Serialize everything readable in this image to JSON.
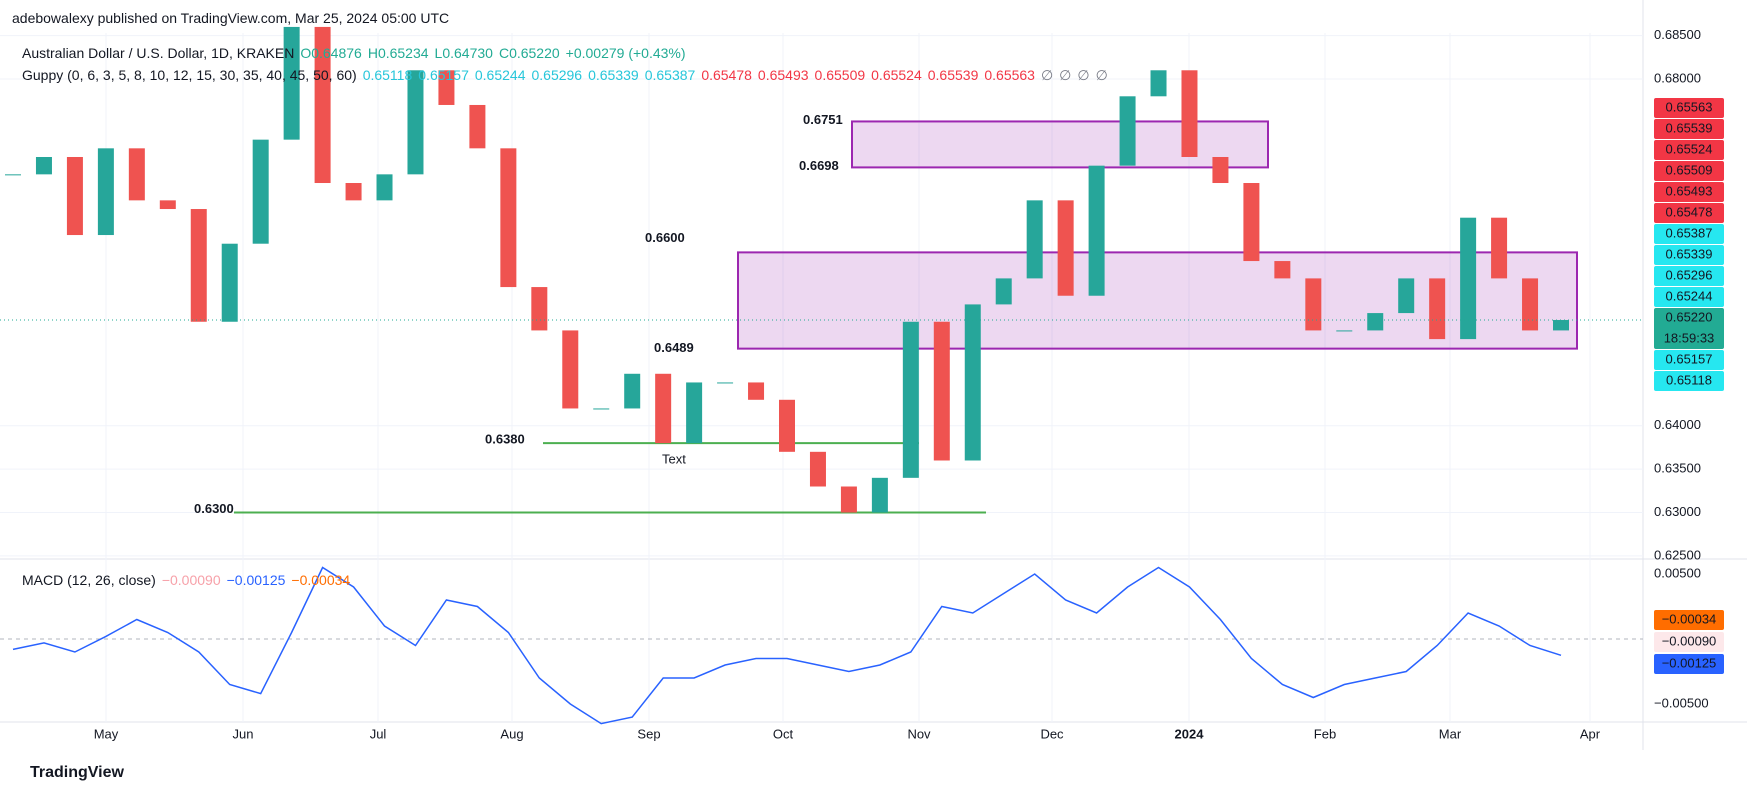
{
  "header": {
    "publisher": "adebowalexy published on TradingView.com, Mar 25, 2024 05:00 UTC"
  },
  "chart_data": {
    "type": "candlestick",
    "title": "Australian Dollar / U.S. Dollar, 1D, KRAKEN",
    "ohlc": [
      {
        "text": "O0.64876",
        "color": "#22ab94"
      },
      {
        "text": "H0.65234",
        "color": "#22ab94"
      },
      {
        "text": "L0.64730",
        "color": "#22ab94"
      },
      {
        "text": "C0.65220",
        "color": "#22ab94"
      },
      {
        "text": "+0.00279 (+0.43%)",
        "color": "#22ab94"
      }
    ],
    "guppy": {
      "label": "Guppy (0, 6, 3, 5, 8, 10, 12, 15, 30, 35, 40, 45, 50, 60)",
      "values": [
        {
          "text": "0.65118",
          "color": "#26c6da"
        },
        {
          "text": "0.65157",
          "color": "#26c6da"
        },
        {
          "text": "0.65244",
          "color": "#26c6da"
        },
        {
          "text": "0.65296",
          "color": "#26c6da"
        },
        {
          "text": "0.65339",
          "color": "#26c6da"
        },
        {
          "text": "0.65387",
          "color": "#26c6da"
        },
        {
          "text": "0.65478",
          "color": "#f23645"
        },
        {
          "text": "0.65493",
          "color": "#f23645"
        },
        {
          "text": "0.65509",
          "color": "#f23645"
        },
        {
          "text": "0.65524",
          "color": "#f23645"
        },
        {
          "text": "0.65539",
          "color": "#f23645"
        },
        {
          "text": "0.65563",
          "color": "#f23645"
        },
        {
          "text": "∅",
          "color": "#787b86"
        },
        {
          "text": "∅",
          "color": "#787b86"
        },
        {
          "text": "∅",
          "color": "#787b86"
        },
        {
          "text": "∅",
          "color": "#787b86"
        }
      ]
    },
    "close": [
      0.669,
      0.671,
      0.662,
      0.672,
      0.666,
      0.665,
      0.652,
      0.661,
      0.673,
      0.686,
      0.668,
      0.666,
      0.669,
      0.681,
      0.677,
      0.672,
      0.656,
      0.651,
      0.642,
      0.642,
      0.646,
      0.638,
      0.645,
      0.645,
      0.643,
      0.637,
      0.633,
      0.63,
      0.634,
      0.652,
      0.636,
      0.654,
      0.657,
      0.666,
      0.655,
      0.67,
      0.678,
      0.681,
      0.671,
      0.668,
      0.659,
      0.657,
      0.651,
      0.651,
      0.653,
      0.657,
      0.65,
      0.664,
      0.657,
      0.651,
      0.6522
    ],
    "up_color": "#26a69a",
    "down_color": "#ef5350",
    "ylim": [
      0.62487,
      0.6853
    ],
    "yticks": [
      {
        "value": 0.625,
        "label": "0.62500"
      },
      {
        "value": 0.63,
        "label": "0.63000"
      },
      {
        "value": 0.635,
        "label": "0.63500"
      },
      {
        "value": 0.64,
        "label": "0.64000"
      },
      {
        "value": 0.68,
        "label": "0.68000"
      },
      {
        "value": 0.685,
        "label": "0.68500"
      }
    ],
    "grid": true,
    "price_labels": [
      {
        "text": "0.65563",
        "color": "#f23645"
      },
      {
        "text": "0.65539",
        "color": "#f23645"
      },
      {
        "text": "0.65524",
        "color": "#f23645"
      },
      {
        "text": "0.65509",
        "color": "#f23645"
      },
      {
        "text": "0.65493",
        "color": "#f23645"
      },
      {
        "text": "0.65478",
        "color": "#f23645"
      },
      {
        "text": "0.65387",
        "color": "#26e7f0"
      },
      {
        "text": "0.65339",
        "color": "#26e7f0"
      },
      {
        "text": "0.65296",
        "color": "#26e7f0"
      },
      {
        "text": "0.65244",
        "color": "#26e7f0"
      },
      {
        "text": "0.65220",
        "countdown": "18:59:33",
        "color": "#22ab94"
      },
      {
        "text": "0.65157",
        "color": "#26e7f0"
      },
      {
        "text": "0.65118",
        "color": "#26e7f0"
      }
    ],
    "zones": [
      {
        "top": 0.6751,
        "bottom": 0.6698
      },
      {
        "top": {
          "value": 0.66,
          "label": "0.6600"
        },
        "bottom": 0.6489
      }
    ],
    "levels": [
      {
        "value": 0.638,
        "label": "0.6380"
      },
      {
        "value": 0.63,
        "label": "0.6300"
      }
    ],
    "note": "Text",
    "time_labels": [
      "May",
      "Jun",
      "Jul",
      "Aug",
      "Sep",
      "Oct",
      "Nov",
      "Dec",
      "2024",
      "Feb",
      "Mar",
      "Apr"
    ],
    "macd": {
      "title": "MACD (12, 26, close)",
      "legend": [
        {
          "text": "−0.00090",
          "color": "#f7a1a9"
        },
        {
          "text": "−0.00125",
          "color": "#2962ff"
        },
        {
          "text": "−0.00034",
          "color": "#ff6d00"
        }
      ],
      "ylim": [
        -0.00638,
        0.00615
      ],
      "yticks": [
        {
          "value": 0.005,
          "label": "0.00500"
        },
        {
          "value": -0.005,
          "label": "−0.00500"
        }
      ],
      "color": "#2962ff",
      "values": [
        -0.0008,
        -0.0003,
        -0.001,
        0.0002,
        0.0015,
        0.0005,
        -0.001,
        -0.0035,
        -0.0042,
        0.0005,
        0.0055,
        0.004,
        0.001,
        -0.0005,
        0.003,
        0.0025,
        0.0005,
        -0.003,
        -0.005,
        -0.0065,
        -0.006,
        -0.003,
        -0.003,
        -0.002,
        -0.0015,
        -0.0015,
        -0.002,
        -0.0025,
        -0.002,
        -0.001,
        0.0025,
        0.002,
        0.0035,
        0.005,
        0.003,
        0.002,
        0.004,
        0.0055,
        0.004,
        0.0015,
        -0.0015,
        -0.0035,
        -0.0045,
        -0.0035,
        -0.003,
        -0.0025,
        -0.0005,
        0.002,
        0.001,
        -0.0005,
        -0.00125
      ]
    }
  },
  "footer": {
    "brand": "TradingView"
  }
}
